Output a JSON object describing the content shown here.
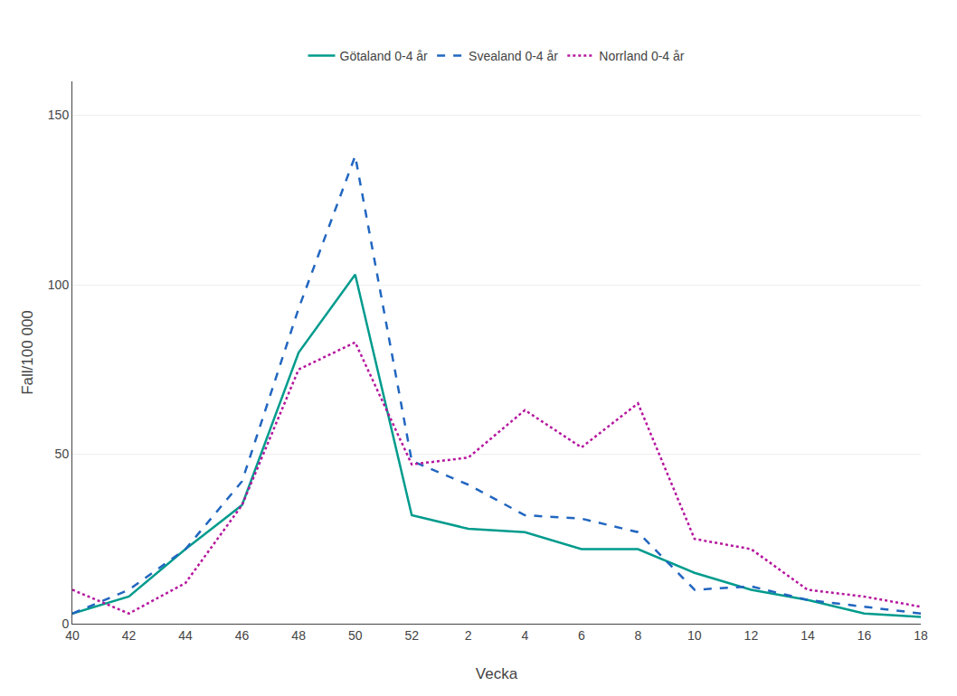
{
  "chart_data": {
    "type": "line",
    "xlabel": "Vecka",
    "ylabel": "Fall/100 000",
    "categories": [
      "40",
      "42",
      "44",
      "46",
      "48",
      "50",
      "52",
      "2",
      "4",
      "6",
      "8",
      "10",
      "12",
      "14",
      "16",
      "18"
    ],
    "series": [
      {
        "name": "Götaland 0-4 år",
        "color": "#009b8d",
        "line_style": "solid",
        "values": [
          3,
          8,
          22,
          35,
          80,
          103,
          32,
          28,
          27,
          22,
          22,
          15,
          10,
          7,
          3,
          2
        ]
      },
      {
        "name": "Svealand 0-4 år",
        "color": "#2166c0",
        "line_style": "dash",
        "values": [
          3,
          10,
          22,
          42,
          93,
          138,
          48,
          41,
          32,
          31,
          27,
          10,
          11,
          7,
          5,
          3
        ]
      },
      {
        "name": "Norrland 0-4 år",
        "color": "#b5179e",
        "line_style": "dot",
        "values": [
          10,
          3,
          12,
          35,
          75,
          83,
          47,
          49,
          63,
          52,
          65,
          25,
          22,
          10,
          8,
          5
        ]
      }
    ],
    "ylim": [
      0,
      160
    ],
    "yticks": [
      0,
      50,
      100,
      150
    ],
    "grid": true,
    "legend": "top"
  }
}
